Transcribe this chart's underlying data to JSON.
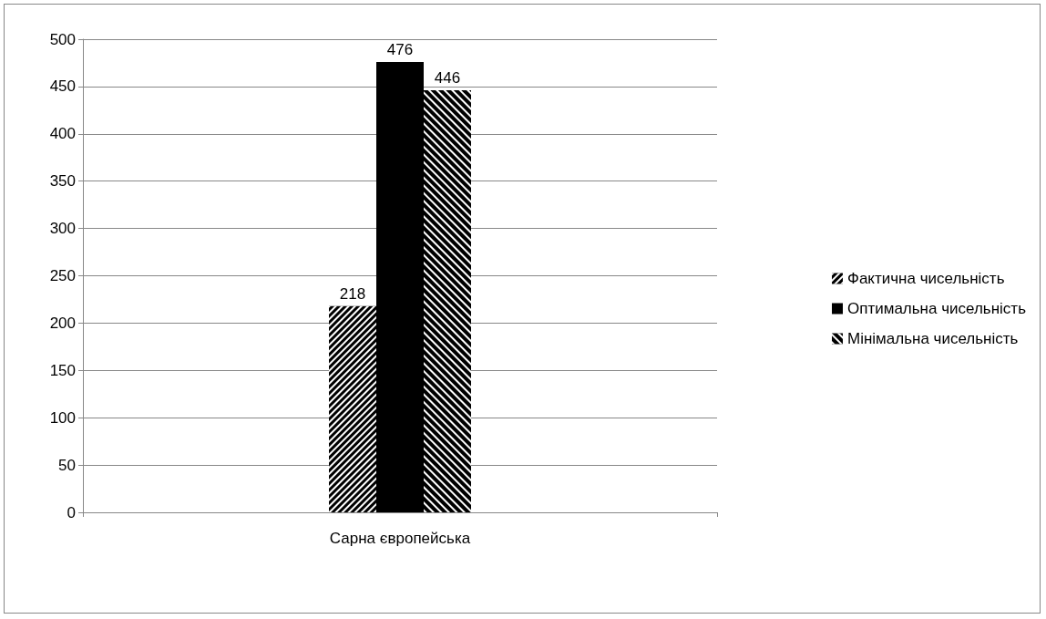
{
  "chart_data": {
    "type": "bar",
    "categories": [
      "Сарна європейська"
    ],
    "series": [
      {
        "name": "Фактична чисельність",
        "color": "#000000",
        "values": [
          218
        ]
      },
      {
        "name": "Оптимальна чисельність",
        "color": "#000000",
        "values": [
          476
        ]
      },
      {
        "name": "Мінімальна чисельність",
        "color": "#000000",
        "values": [
          446
        ]
      }
    ],
    "ylim": [
      0,
      500
    ],
    "yticks": [
      0,
      50,
      100,
      150,
      200,
      250,
      300,
      350,
      400,
      450,
      500
    ],
    "grid": "y",
    "legend": "right",
    "data_labels": true
  }
}
